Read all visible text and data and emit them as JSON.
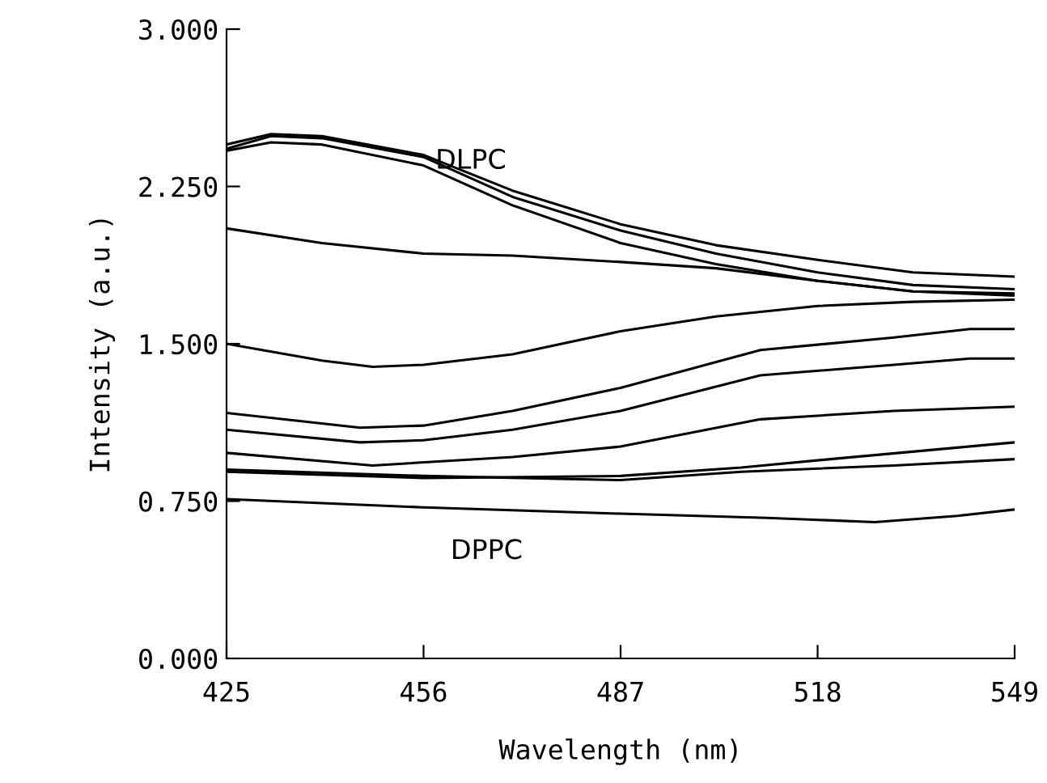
{
  "chart_data": {
    "type": "line",
    "xlabel": "Wavelength (nm)",
    "ylabel": "Intensity (a.u.)",
    "xlim": [
      425,
      549
    ],
    "xticks": [
      425,
      456,
      487,
      518,
      549
    ],
    "ylim": [
      0,
      3
    ],
    "yticks": [
      {
        "value": 0,
        "label": "0.000"
      },
      {
        "value": 0.75,
        "label": "0.750"
      },
      {
        "value": 1.5,
        "label": "1.500"
      },
      {
        "value": 2.25,
        "label": "2.250"
      },
      {
        "value": 3,
        "label": "3.000"
      }
    ],
    "grid": false,
    "legend": false,
    "marker": "none",
    "line_style": "solid",
    "annotations": [
      "DLPC",
      "DPPC"
    ],
    "series": [
      {
        "color": "#000000",
        "x": [
          425,
          432,
          440,
          456,
          470,
          487,
          502,
          518,
          533,
          549
        ],
        "values": [
          2.45,
          2.5,
          2.49,
          2.4,
          2.23,
          2.07,
          1.97,
          1.9,
          1.84,
          1.82
        ]
      },
      {
        "color": "#000000",
        "x": [
          425,
          432,
          440,
          456,
          470,
          487,
          502,
          518,
          533,
          549
        ],
        "values": [
          2.43,
          2.49,
          2.48,
          2.39,
          2.2,
          2.04,
          1.93,
          1.84,
          1.78,
          1.76
        ]
      },
      {
        "color": "#000000",
        "x": [
          425,
          432,
          440,
          456,
          470,
          487,
          502,
          518,
          533,
          549
        ],
        "values": [
          2.42,
          2.46,
          2.45,
          2.35,
          2.16,
          1.98,
          1.88,
          1.8,
          1.75,
          1.73
        ]
      },
      {
        "color": "#000000",
        "x": [
          425,
          440,
          456,
          470,
          487,
          502,
          518,
          533,
          549
        ],
        "values": [
          2.05,
          1.98,
          1.93,
          1.92,
          1.89,
          1.86,
          1.8,
          1.75,
          1.74
        ]
      },
      {
        "color": "#000000",
        "x": [
          425,
          440,
          448,
          456,
          470,
          487,
          502,
          518,
          533,
          549
        ],
        "values": [
          1.5,
          1.42,
          1.39,
          1.4,
          1.45,
          1.56,
          1.63,
          1.68,
          1.7,
          1.71
        ]
      },
      {
        "color": "#000000",
        "x": [
          425,
          446,
          456,
          470,
          487,
          509,
          530,
          542,
          549
        ],
        "values": [
          1.17,
          1.1,
          1.11,
          1.18,
          1.29,
          1.47,
          1.53,
          1.57,
          1.57
        ]
      },
      {
        "color": "#000000",
        "x": [
          425,
          446,
          456,
          470,
          487,
          509,
          530,
          542,
          549
        ],
        "values": [
          1.09,
          1.03,
          1.04,
          1.09,
          1.18,
          1.35,
          1.4,
          1.43,
          1.43
        ]
      },
      {
        "color": "#000000",
        "x": [
          425,
          448,
          470,
          487,
          509,
          530,
          549
        ],
        "values": [
          0.98,
          0.92,
          0.96,
          1.01,
          1.14,
          1.18,
          1.2
        ]
      },
      {
        "color": "#000000",
        "x": [
          425,
          456,
          487,
          506,
          520,
          549
        ],
        "values": [
          0.89,
          0.86,
          0.87,
          0.91,
          0.95,
          1.03
        ]
      },
      {
        "color": "#000000",
        "x": [
          425,
          456,
          487,
          506,
          530,
          549
        ],
        "values": [
          0.9,
          0.87,
          0.85,
          0.89,
          0.92,
          0.95
        ]
      },
      {
        "color": "#000000",
        "x": [
          425,
          456,
          487,
          510,
          527,
          540,
          549
        ],
        "values": [
          0.76,
          0.72,
          0.69,
          0.67,
          0.65,
          0.68,
          0.71
        ]
      }
    ]
  }
}
